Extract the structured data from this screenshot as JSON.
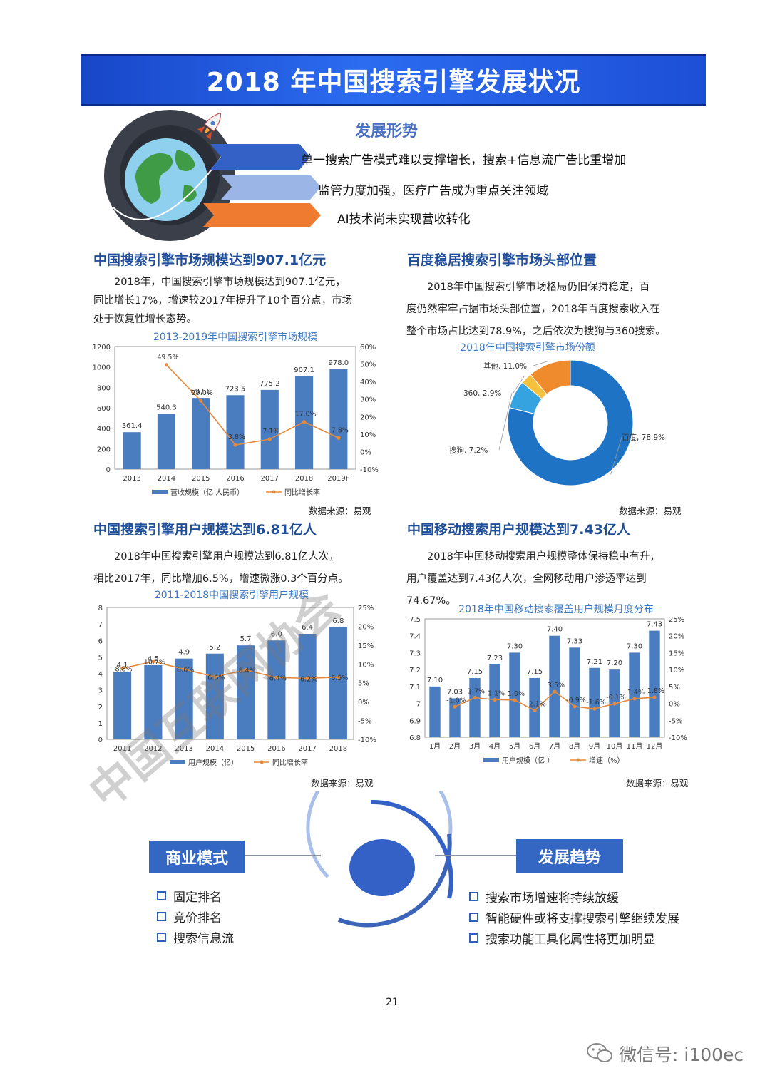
{
  "banner_title": "2018 年中国搜索引擎发展状况",
  "situation": {
    "title": "发展形势",
    "points": [
      "单一搜索广告模式难以支撑增长，搜索+信息流广告比重增加",
      "监管力度加强，医疗广告成为重点关注领域",
      "AI技术尚未实现营收转化"
    ]
  },
  "market": {
    "heading": "中国搜索引擎市场规模达到907.1亿元",
    "text": [
      "2018年，中国搜索引擎市场规模达到907.1亿元，",
      "同比增长17%，增速较2017年提升了10个百分点，市场",
      "处于恢复性增长态势。"
    ],
    "source": "数据来源：易观"
  },
  "share": {
    "heading": "百度稳居搜索引擎市场头部位置",
    "text": [
      "2018年中国搜索引擎市场格局仍旧保持稳定，百",
      "度仍然牢牢占据市场头部位置，2018年百度搜索收入在",
      "整个市场占比达到78.9%，之后依次为搜狗与360搜索。"
    ],
    "source": "数据来源：易观"
  },
  "users": {
    "heading": "中国搜索引擎用户规模达到6.81亿人",
    "text": [
      "2018年中国搜索引擎用户规模达到6.81亿人次，",
      "相比2017年，同比增加6.5%，增速微涨0.3个百分点。"
    ],
    "source": "数据来源：易观"
  },
  "mobile": {
    "heading": "中国移动搜索用户规模达到7.43亿人",
    "text": [
      "2018年中国移动搜索用户规模整体保持稳中有升，",
      "用户覆盖达到7.43亿人次，全网移动用户渗透率达到",
      "74.67%。"
    ],
    "source": "数据来源：易观"
  },
  "business": {
    "label": "商业模式",
    "items": [
      "固定排名",
      "竞价排名",
      "搜索信息流"
    ]
  },
  "trend": {
    "label": "发展趋势",
    "items": [
      "搜索市场增速将持续放缓",
      "智能硬件或将支撑搜索引擎继续发展",
      "搜索功能工具化属性将更加明显"
    ]
  },
  "watermark": "中国互联网协会",
  "page_number": "21",
  "wechat": "微信号: i100ec",
  "colors": {
    "bar": "#4a7cc0",
    "line": "#e58a3c",
    "banner": "#2b6cf0",
    "heading": "#1f4e9a"
  },
  "chart_data": [
    {
      "type": "bar",
      "title": "2013-2019年中国搜索引擎市场规模",
      "categories": [
        "2013",
        "2014",
        "2015",
        "2016",
        "2017",
        "2018",
        "2019F"
      ],
      "series": [
        {
          "name": "营收规模（亿 人民币）",
          "values": [
            361.4,
            540.3,
            697.0,
            723.5,
            775.2,
            907.1,
            978.0
          ],
          "labels": [
            "361.4",
            "540.3",
            "697.0",
            "723.5",
            "775.2",
            "907.1",
            "978.0"
          ]
        },
        {
          "name": "同比增长率",
          "axis": "right",
          "values": [
            null,
            49.5,
            29.0,
            3.8,
            7.1,
            17.0,
            7.8
          ],
          "labels": [
            "",
            "49.5%",
            "29.0%",
            "3.8%",
            "7.1%",
            "17.0%",
            "7.8%"
          ]
        }
      ],
      "ylim": [
        0,
        1200
      ],
      "yticks": [
        "0",
        "200",
        "400",
        "600",
        "800",
        "1000",
        "1200"
      ],
      "y2lim": [
        -10,
        60
      ],
      "y2ticks": [
        "-10%",
        "0%",
        "10%",
        "20%",
        "30%",
        "40%",
        "50%",
        "60%"
      ]
    },
    {
      "type": "pie",
      "title": "2018年中国搜索引擎市场份额",
      "slices": [
        {
          "name": "百度",
          "value": 78.9,
          "label": "百度, 78.9%",
          "color": "#1f73c4"
        },
        {
          "name": "搜狗",
          "value": 7.2,
          "label": "搜狗, 7.2%",
          "color": "#34a3e0"
        },
        {
          "name": "360",
          "value": 2.9,
          "label": "360, 2.9%",
          "color": "#f6c23e"
        },
        {
          "name": "其他",
          "value": 11.0,
          "label": "其他, 11.0%",
          "color": "#ef8a2d"
        }
      ]
    },
    {
      "type": "bar",
      "title": "2011-2018中国搜索引擎用户规模",
      "categories": [
        "2011",
        "2012",
        "2013",
        "2014",
        "2015",
        "2016",
        "2017",
        "2018"
      ],
      "series": [
        {
          "name": "用户规模（亿）",
          "values": [
            4.1,
            4.5,
            4.9,
            5.2,
            5.7,
            6.0,
            6.4,
            6.8
          ],
          "labels": [
            "4.1",
            "4.5",
            "4.9",
            "5.2",
            "5.7",
            "6.0",
            "6.4",
            "6.8"
          ]
        },
        {
          "name": "同比增长率",
          "axis": "right",
          "values": [
            8.8,
            10.7,
            8.6,
            6.6,
            8.4,
            6.4,
            6.2,
            6.5
          ],
          "labels": [
            "8.8%",
            "10.7%",
            "8.6%",
            "6.6%",
            "8.4%",
            "6.4%",
            "6.2%",
            "6.5%"
          ]
        }
      ],
      "ylim": [
        0,
        8
      ],
      "yticks": [
        "0",
        "1",
        "2",
        "3",
        "4",
        "5",
        "6",
        "7",
        "8"
      ],
      "y2lim": [
        -10,
        25
      ],
      "y2ticks": [
        "-10%",
        "-5%",
        "0%",
        "5%",
        "10%",
        "15%",
        "20%",
        "25%"
      ]
    },
    {
      "type": "bar",
      "title": "2018年中国移动搜索覆盖用户规模月度分布",
      "categories": [
        "1月",
        "2月",
        "3月",
        "4月",
        "5月",
        "6月",
        "7月",
        "8月",
        "9月",
        "10月",
        "11月",
        "12月"
      ],
      "series": [
        {
          "name": "用户规模（亿 ）",
          "values": [
            7.1,
            7.03,
            7.15,
            7.23,
            7.3,
            7.15,
            7.4,
            7.33,
            7.21,
            7.2,
            7.3,
            7.43
          ],
          "labels": [
            "7.10",
            "7.03",
            "7.15",
            "7.23",
            "7.30",
            "7.15",
            "7.40",
            "7.33",
            "7.21",
            "7.20",
            "7.30",
            "7.43"
          ]
        },
        {
          "name": "增速（%）",
          "axis": "right",
          "values": [
            null,
            -1.0,
            1.7,
            1.1,
            1.0,
            -2.1,
            3.5,
            -0.9,
            -1.6,
            -0.1,
            1.4,
            1.8
          ],
          "labels": [
            "",
            "-1.0%",
            "1.7%",
            "1.1%",
            "1.0%",
            "-2.1%",
            "3.5%",
            "-0.9%",
            "-1.6%",
            "-0.1%",
            "1.4%",
            "1.8%"
          ]
        }
      ],
      "ylim": [
        6.8,
        7.5
      ],
      "yticks": [
        "6.8",
        "6.9",
        "7",
        "7.1",
        "7.2",
        "7.3",
        "7.4",
        "7.5"
      ],
      "y2lim": [
        -10,
        25
      ],
      "y2ticks": [
        "-10%",
        "-5%",
        "0%",
        "5%",
        "10%",
        "15%",
        "20%",
        "25%"
      ]
    }
  ]
}
